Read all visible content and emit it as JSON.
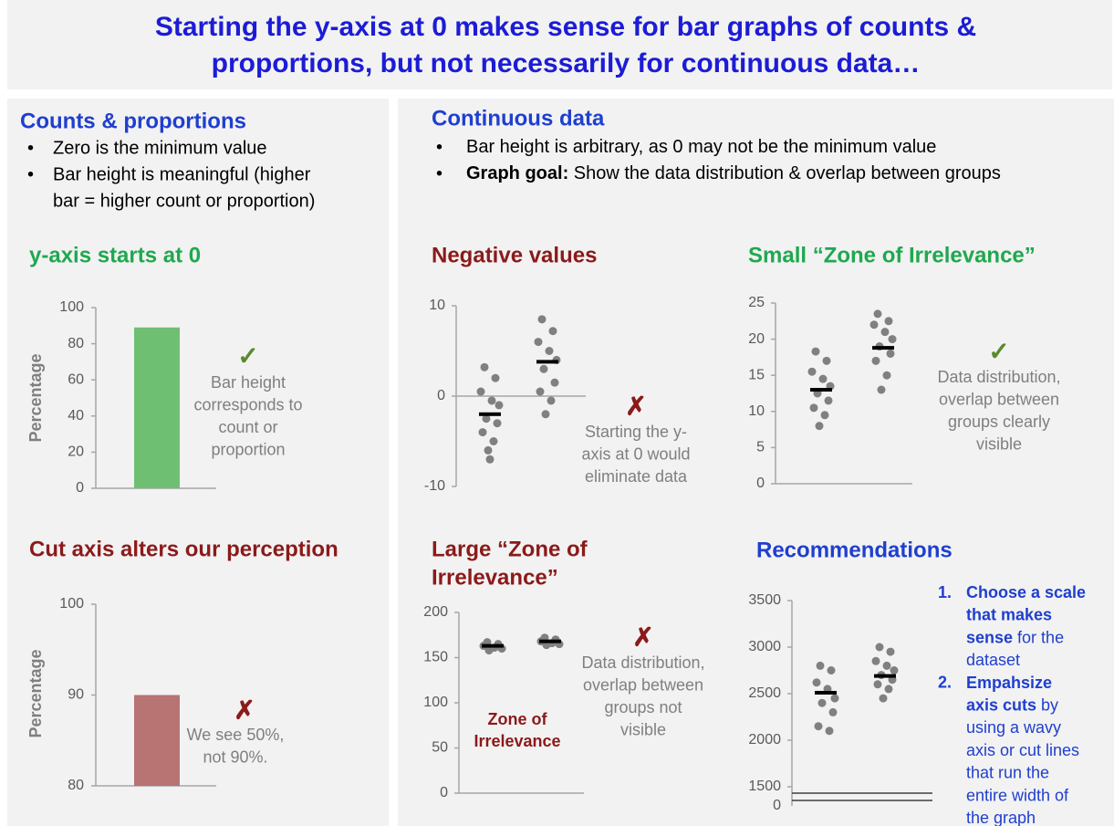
{
  "header": {
    "title": [
      "Starting the y-axis at 0 makes sense for bar graphs of counts &",
      "proportions, but not necessarily for continuous data…"
    ]
  },
  "left": {
    "heading": "Counts & proportions",
    "bullets": [
      [
        "Zero is the minimum value"
      ],
      [
        "Bar height is meaningful (higher",
        "bar = higher count or proportion)"
      ]
    ]
  },
  "right": {
    "heading": "Continuous data",
    "bullets": [
      [
        {
          "text": "Bar height is arbitrary, as 0 may not be the minimum value"
        }
      ],
      [
        {
          "text": "Graph goal:",
          "bold": true
        },
        {
          "text": " Show the data distribution & overlap between groups"
        }
      ]
    ]
  },
  "chart_data": [
    {
      "type": "bar",
      "title": [
        "y-axis starts at 0"
      ],
      "title_color": "#1fa84f",
      "ylabel": "Percentage",
      "values": [
        89
      ],
      "color": "#6fbf73",
      "ylim": [
        0,
        100
      ],
      "yticks": [
        0,
        20,
        40,
        60,
        80,
        100
      ],
      "mark": "✓",
      "mark_color": "#5a8a2a",
      "note": [
        "Bar height",
        "corresponds to",
        "count or",
        "proportion"
      ]
    },
    {
      "type": "bar",
      "title": [
        "Cut axis alters our perception"
      ],
      "title_color": "#8b1a1a",
      "ylabel": "Percentage",
      "values": [
        90
      ],
      "color": "#b87373",
      "ylim": [
        80,
        100
      ],
      "yticks": [
        80,
        90,
        100
      ],
      "mark": "✗",
      "mark_color": "#8b1a1a",
      "note": [
        "We see 50%,",
        "not 90%."
      ]
    },
    {
      "type": "dot",
      "title": [
        "Negative values"
      ],
      "title_color": "#8b1a1a",
      "ylim": [
        -10,
        10
      ],
      "yticks": [
        -10,
        0,
        10
      ],
      "groups": [
        {
          "values": [
            3.2,
            2,
            0.5,
            -0.5,
            -1,
            -2.5,
            -3,
            -4,
            -5,
            -6,
            -7
          ],
          "mean": -2
        },
        {
          "values": [
            8.5,
            7.2,
            6,
            5,
            4,
            3,
            1.5,
            0.5,
            -0.5,
            -2
          ],
          "mean": 3.8
        }
      ],
      "color": "#808080",
      "mark": "✗",
      "mark_color": "#8b1a1a",
      "note": [
        "Starting the y-",
        "axis at 0 would",
        "eliminate data"
      ]
    },
    {
      "type": "dot",
      "title": [
        "Small “Zone of Irrelevance”"
      ],
      "title_color": "#1fa84f",
      "ylim": [
        0,
        25
      ],
      "yticks": [
        0,
        5,
        10,
        15,
        20,
        25
      ],
      "groups": [
        {
          "values": [
            18.3,
            17,
            15.5,
            14.5,
            13.5,
            12.5,
            11.5,
            10.5,
            9.5,
            8
          ],
          "mean": 13
        },
        {
          "values": [
            23.5,
            22.5,
            22,
            21,
            20,
            19,
            18,
            17,
            15,
            13
          ],
          "mean": 18.8
        }
      ],
      "color": "#808080",
      "mark": "✓",
      "mark_color": "#5a8a2a",
      "note": [
        "Data distribution,",
        "overlap between",
        "groups clearly",
        "visible"
      ]
    },
    {
      "type": "dot",
      "title": [
        "Large “Zone of",
        "Irrelevance”"
      ],
      "title_color": "#8b1a1a",
      "ylim": [
        0,
        200
      ],
      "yticks": [
        0,
        50,
        100,
        150,
        200
      ],
      "groups": [
        {
          "values": [
            167,
            165,
            163,
            161,
            160,
            158
          ],
          "mean": 163
        },
        {
          "values": [
            172,
            170,
            168,
            166,
            165,
            164
          ],
          "mean": 168
        }
      ],
      "color": "#808080",
      "mark": "✗",
      "mark_color": "#8b1a1a",
      "note": [
        "Data distribution,",
        "overlap between",
        "groups not",
        "visible"
      ],
      "zone_label": [
        "Zone of",
        "Irrelevance"
      ]
    },
    {
      "type": "dot",
      "title": [
        "Recommendations"
      ],
      "title_color": "#1f3fcf",
      "ylim": [
        1500,
        3500
      ],
      "yticks": [
        1500,
        2000,
        2500,
        3000,
        3500
      ],
      "break_tick": 0,
      "groups": [
        {
          "values": [
            2800,
            2750,
            2620,
            2550,
            2450,
            2400,
            2300,
            2150,
            2100
          ],
          "mean": 2510
        },
        {
          "values": [
            3000,
            2950,
            2850,
            2800,
            2750,
            2700,
            2650,
            2600,
            2550,
            2450
          ],
          "mean": 2690
        }
      ],
      "color": "#808080"
    }
  ],
  "recommendations": [
    [
      [
        {
          "text": "Choose a scale",
          "bold": true
        }
      ],
      [
        {
          "text": "that makes",
          "bold": true
        }
      ],
      [
        {
          "text": "sense",
          "bold": true
        },
        {
          "text": " for the"
        }
      ],
      [
        {
          "text": "dataset"
        }
      ]
    ],
    [
      [
        {
          "text": "Empahsize",
          "bold": true
        }
      ],
      [
        {
          "text": "axis cuts",
          "bold": true
        },
        {
          "text": " by"
        }
      ],
      [
        {
          "text": "using a wavy"
        }
      ],
      [
        {
          "text": "axis or cut lines"
        }
      ],
      [
        {
          "text": "that run the"
        }
      ],
      [
        {
          "text": "entire width of"
        }
      ],
      [
        {
          "text": "the graph"
        }
      ]
    ]
  ]
}
